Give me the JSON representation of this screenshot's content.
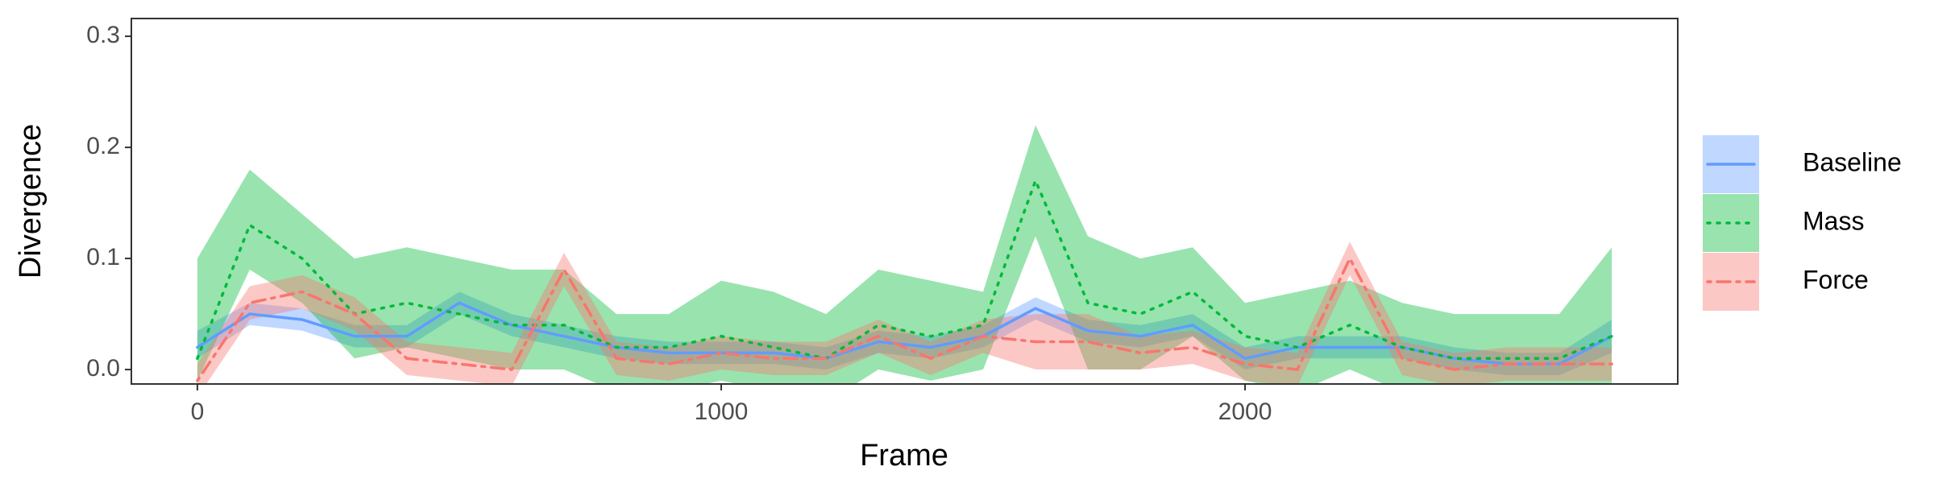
{
  "chart_data": {
    "type": "line",
    "xlabel": "Frame",
    "ylabel": "Divergence",
    "x": [
      0,
      100,
      200,
      300,
      400,
      500,
      600,
      700,
      800,
      900,
      1000,
      1100,
      1200,
      1300,
      1400,
      1500,
      1600,
      1700,
      1800,
      1900,
      2000,
      2100,
      2200,
      2300,
      2400,
      2500,
      2600,
      2700
    ],
    "xlim": [
      -126,
      2826
    ],
    "xticks": [
      0,
      1000,
      2000
    ],
    "ylim": [
      -0.013,
      0.316
    ],
    "yticks": [
      {
        "value": 0,
        "label": "0.0"
      },
      0.1,
      0.2,
      0.3
    ],
    "legend": "right",
    "series": [
      {
        "name": "Baseline",
        "color": "#619CFF",
        "linetype": "solid",
        "values": [
          0.02,
          0.05,
          0.045,
          0.03,
          0.03,
          0.06,
          0.04,
          0.03,
          0.02,
          0.015,
          0.015,
          0.015,
          0.01,
          0.025,
          0.02,
          0.03,
          0.055,
          0.035,
          0.03,
          0.04,
          0.01,
          0.02,
          0.02,
          0.02,
          0.01,
          0.005,
          0.005,
          0.03
        ],
        "lower": [
          0.01,
          0.04,
          0.035,
          0.02,
          0.02,
          0.05,
          0.03,
          0.02,
          0.01,
          0.005,
          0.005,
          0.005,
          0.0,
          0.015,
          0.01,
          0.02,
          0.045,
          0.025,
          0.02,
          0.03,
          0.0,
          0.01,
          0.01,
          0.01,
          0.0,
          -0.005,
          -0.005,
          0.015
        ],
        "upper": [
          0.035,
          0.06,
          0.055,
          0.04,
          0.04,
          0.07,
          0.05,
          0.04,
          0.03,
          0.025,
          0.025,
          0.025,
          0.02,
          0.035,
          0.03,
          0.04,
          0.065,
          0.045,
          0.04,
          0.05,
          0.02,
          0.03,
          0.03,
          0.03,
          0.02,
          0.015,
          0.015,
          0.045
        ]
      },
      {
        "name": "Mass",
        "color": "#00BA38",
        "linetype": "dotted",
        "values": [
          0.01,
          0.13,
          0.1,
          0.05,
          0.06,
          0.05,
          0.04,
          0.04,
          0.02,
          0.02,
          0.03,
          0.02,
          0.01,
          0.04,
          0.03,
          0.04,
          0.17,
          0.06,
          0.05,
          0.07,
          0.03,
          0.02,
          0.04,
          0.02,
          0.01,
          0.01,
          0.01,
          0.03
        ],
        "lower": [
          -0.01,
          0.09,
          0.06,
          0.01,
          0.02,
          0.01,
          0.0,
          0.0,
          -0.02,
          -0.02,
          -0.01,
          -0.02,
          -0.03,
          0.0,
          -0.01,
          0.0,
          0.12,
          0.0,
          0.0,
          0.03,
          -0.01,
          -0.02,
          0.0,
          -0.02,
          -0.03,
          -0.03,
          -0.03,
          -0.02
        ],
        "upper": [
          0.1,
          0.18,
          0.14,
          0.1,
          0.11,
          0.1,
          0.09,
          0.09,
          0.05,
          0.05,
          0.08,
          0.07,
          0.05,
          0.09,
          0.08,
          0.07,
          0.22,
          0.12,
          0.1,
          0.11,
          0.06,
          0.07,
          0.08,
          0.06,
          0.05,
          0.05,
          0.05,
          0.11
        ]
      },
      {
        "name": "Force",
        "color": "#F8766D",
        "linetype": "dotdash",
        "values": [
          -0.01,
          0.06,
          0.07,
          0.05,
          0.01,
          0.005,
          0.0,
          0.09,
          0.01,
          0.005,
          0.015,
          0.01,
          0.01,
          0.03,
          0.01,
          0.03,
          0.025,
          0.025,
          0.015,
          0.02,
          0.005,
          0.0,
          0.1,
          0.01,
          0.0,
          0.005,
          0.005,
          0.005
        ],
        "lower": [
          -0.025,
          0.045,
          0.055,
          0.035,
          -0.005,
          -0.01,
          -0.015,
          0.075,
          -0.005,
          -0.01,
          0.0,
          -0.005,
          -0.005,
          0.015,
          -0.005,
          0.015,
          0.0,
          0.0,
          0.0,
          0.005,
          -0.01,
          -0.015,
          0.085,
          -0.005,
          -0.015,
          -0.01,
          -0.01,
          -0.01
        ],
        "upper": [
          0.005,
          0.075,
          0.085,
          0.065,
          0.025,
          0.02,
          0.015,
          0.105,
          0.025,
          0.02,
          0.03,
          0.025,
          0.025,
          0.045,
          0.025,
          0.045,
          0.05,
          0.05,
          0.03,
          0.035,
          0.02,
          0.015,
          0.115,
          0.025,
          0.015,
          0.02,
          0.02,
          0.02
        ]
      }
    ]
  }
}
